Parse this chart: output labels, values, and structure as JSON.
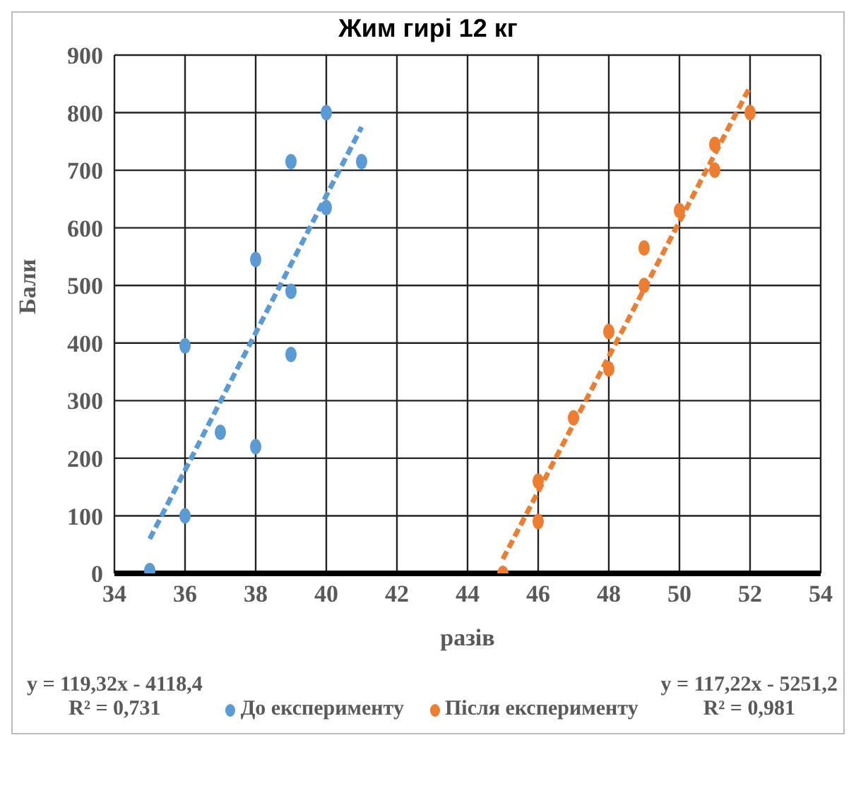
{
  "chart_data": {
    "type": "scatter",
    "title": "Жим гирі 12 кг",
    "xlabel": "разів",
    "ylabel": "Бали",
    "xlim": [
      34,
      54
    ],
    "xticks": [
      34,
      36,
      38,
      40,
      42,
      44,
      46,
      48,
      50,
      52,
      54
    ],
    "ylim": [
      0,
      900
    ],
    "yticks": [
      0,
      100,
      200,
      300,
      400,
      500,
      600,
      700,
      800,
      900
    ],
    "grid": true,
    "legend": "bottom",
    "marker": "circle",
    "series": [
      {
        "name": "До експерименту",
        "color": "#5b9bd5",
        "x": [
          35,
          36,
          36,
          37,
          38,
          38,
          39,
          39,
          39,
          40,
          40,
          41
        ],
        "values": [
          5,
          395,
          100,
          245,
          545,
          220,
          715,
          490,
          380,
          800,
          635,
          715
        ]
      },
      {
        "name": "Після експерименту",
        "color": "#ed7d31",
        "x": [
          45,
          46,
          46,
          47,
          48,
          48,
          49,
          49,
          50,
          51,
          51,
          52
        ],
        "values": [
          0,
          160,
          90,
          270,
          420,
          355,
          565,
          500,
          630,
          745,
          700,
          800
        ]
      },
      {
        "type": "line",
        "color": "#5b9bd5",
        "line_style": "dashed",
        "marker": "none",
        "x": [
          35,
          41
        ],
        "values": [
          60,
          775
        ]
      },
      {
        "type": "line",
        "color": "#ed7d31",
        "line_style": "dashed",
        "marker": "none",
        "x": [
          45,
          52
        ],
        "values": [
          25,
          845
        ]
      }
    ],
    "annotations": [
      "y = 119,32x - 4118,4",
      "R² = 0,731",
      "y = 117,22x - 5251,2",
      "R² = 0,981"
    ]
  }
}
